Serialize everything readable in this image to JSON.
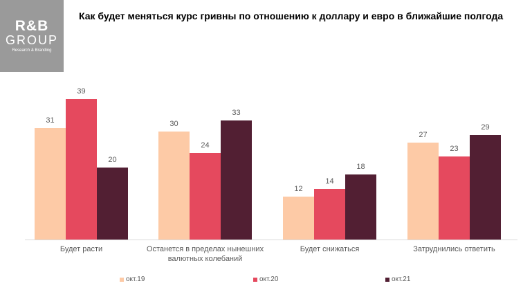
{
  "logo": {
    "main": "R&B",
    "sub": "GROUP",
    "tagline": "Research & Branding"
  },
  "chart_data": {
    "type": "bar",
    "title": "Как будет меняться курс гривны по отношению к доллару и евро в ближайшие полгода",
    "categories": [
      [
        "Будет расти"
      ],
      [
        "Останется в пределах нынешних",
        "валютных колебаний"
      ],
      [
        "Будет снижаться"
      ],
      [
        "Затруднились ответить"
      ]
    ],
    "series": [
      {
        "name": "окт.19",
        "color": "#fdcaa6",
        "values": [
          31,
          30,
          12,
          27
        ]
      },
      {
        "name": "окт.20",
        "color": "#e5495e",
        "values": [
          39,
          24,
          14,
          23
        ]
      },
      {
        "name": "окт.21",
        "color": "#521f33",
        "values": [
          20,
          33,
          18,
          29
        ]
      }
    ],
    "ylim": [
      0,
      40
    ],
    "grid": false,
    "legend_position": "bottom"
  }
}
